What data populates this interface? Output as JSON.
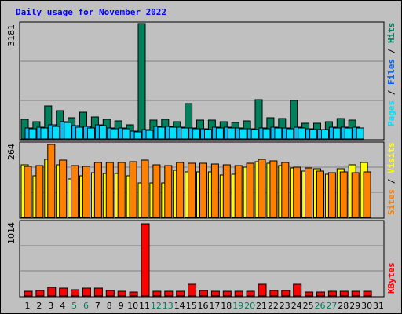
{
  "title": "Daily usage for November 2022",
  "colors": {
    "hits": "#00805c",
    "files": "#00c0ff",
    "pages": "#00e0ff",
    "visits": "#ffff00",
    "sites": "#ff8000",
    "kbytes": "#ff0000",
    "weekend_label": "#00805c",
    "weekday_label": "#000000",
    "panel_bg": "#c0c0c0"
  },
  "chart_data": {
    "type": "bar",
    "categories": [
      "1",
      "2",
      "3",
      "4",
      "5",
      "6",
      "7",
      "8",
      "9",
      "10",
      "11",
      "12",
      "13",
      "14",
      "15",
      "16",
      "17",
      "18",
      "19",
      "20",
      "21",
      "22",
      "23",
      "24",
      "25",
      "26",
      "27",
      "28",
      "29",
      "30",
      "31"
    ],
    "weekend_days": [
      "5",
      "6",
      "12",
      "13",
      "19",
      "20",
      "26",
      "27"
    ],
    "panels": [
      {
        "y_max_label": "3181",
        "ylim": [
          0,
          3181
        ],
        "axis_label": [
          {
            "text": "Pages",
            "color": "#00e0ff"
          },
          {
            "text": " / ",
            "color": "#000000"
          },
          {
            "text": "Files",
            "color": "#0060ff"
          },
          {
            "text": " / ",
            "color": "#000000"
          },
          {
            "text": "Hits",
            "color": "#00805c"
          }
        ],
        "series": [
          {
            "name": "Hits",
            "values": [
              550,
              480,
              900,
              780,
              580,
              740,
              600,
              550,
              490,
              390,
              3181,
              520,
              540,
              480,
              980,
              520,
              520,
              480,
              450,
              500,
              1090,
              580,
              570,
              1050,
              430,
              430,
              470,
              560,
              520,
              null,
              0
            ]
          },
          {
            "name": "Files",
            "values": [
              300,
              330,
              380,
              480,
              360,
              340,
              400,
              300,
              310,
              220,
              250,
              340,
              350,
              320,
              300,
              290,
              330,
              320,
              300,
              280,
              300,
              320,
              310,
              320,
              280,
              270,
              320,
              330,
              320,
              null,
              0
            ]
          },
          {
            "name": "Pages",
            "values": [
              280,
              300,
              350,
              460,
              330,
              310,
              360,
              280,
              290,
              200,
              230,
              320,
              320,
              300,
              280,
              270,
              310,
              300,
              280,
              260,
              280,
              300,
              290,
              300,
              260,
              250,
              300,
              310,
              300,
              null,
              0
            ]
          }
        ]
      },
      {
        "y_max_label": "264",
        "ylim": [
          0,
          264
        ],
        "axis_label": [
          {
            "text": "Sites",
            "color": "#ff8000"
          },
          {
            "text": " / ",
            "color": "#000000"
          },
          {
            "text": "Visits",
            "color": "#ffff00"
          }
        ],
        "series": [
          {
            "name": "Visits",
            "values": [
              190,
              150,
              210,
              190,
              138,
              150,
              162,
              160,
              160,
              150,
              124,
              126,
              126,
              170,
              165,
              165,
              166,
              152,
              156,
              183,
              202,
              197,
              188,
              180,
              168,
              176,
              156,
              175,
              190,
              200,
              0
            ]
          },
          {
            "name": "Sites",
            "values": [
              185,
              188,
              264,
              207,
              188,
              185,
              198,
              198,
              200,
              202,
              206,
              189,
              188,
              198,
              197,
              196,
              192,
              190,
              188,
              197,
              209,
              205,
              198,
              181,
              179,
              167,
              163,
              165,
              163,
              165,
              0
            ]
          }
        ]
      },
      {
        "y_max_label": "1014",
        "ylim": [
          0,
          1014
        ],
        "axis_label": [
          {
            "text": "KBytes",
            "color": "#ff0000"
          }
        ],
        "series": [
          {
            "name": "KBytes",
            "values": [
              70,
              80,
              120,
              110,
              85,
              110,
              110,
              75,
              70,
              50,
              1014,
              65,
              70,
              65,
              170,
              80,
              65,
              65,
              65,
              70,
              170,
              75,
              75,
              170,
              60,
              55,
              65,
              65,
              70,
              70,
              0
            ]
          }
        ]
      }
    ]
  }
}
